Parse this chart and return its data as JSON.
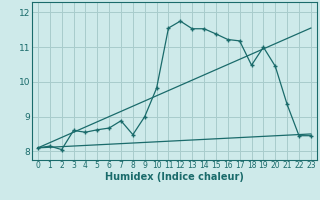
{
  "xlabel": "Humidex (Indice chaleur)",
  "bg_color": "#ceeaea",
  "line_color": "#1a6b6b",
  "grid_color": "#a8cccc",
  "xlim": [
    -0.5,
    23.5
  ],
  "ylim": [
    7.75,
    12.3
  ],
  "xticks": [
    0,
    1,
    2,
    3,
    4,
    5,
    6,
    7,
    8,
    9,
    10,
    11,
    12,
    13,
    14,
    15,
    16,
    17,
    18,
    19,
    20,
    21,
    22,
    23
  ],
  "yticks": [
    8,
    9,
    10,
    11,
    12
  ],
  "curve1_x": [
    0,
    1,
    2,
    3,
    4,
    5,
    6,
    7,
    8,
    9,
    10,
    11,
    12,
    13,
    14,
    15,
    16,
    17,
    18,
    19,
    20,
    21,
    22,
    23
  ],
  "curve1_y": [
    8.1,
    8.15,
    8.05,
    8.6,
    8.55,
    8.62,
    8.67,
    8.88,
    8.48,
    9.0,
    9.82,
    11.55,
    11.75,
    11.53,
    11.53,
    11.38,
    11.22,
    11.18,
    10.48,
    11.0,
    10.45,
    9.35,
    8.45,
    8.45
  ],
  "curve2_x": [
    0,
    23
  ],
  "curve2_y": [
    8.1,
    11.55
  ],
  "curve3_x": [
    0,
    23
  ],
  "curve3_y": [
    8.1,
    8.5
  ]
}
